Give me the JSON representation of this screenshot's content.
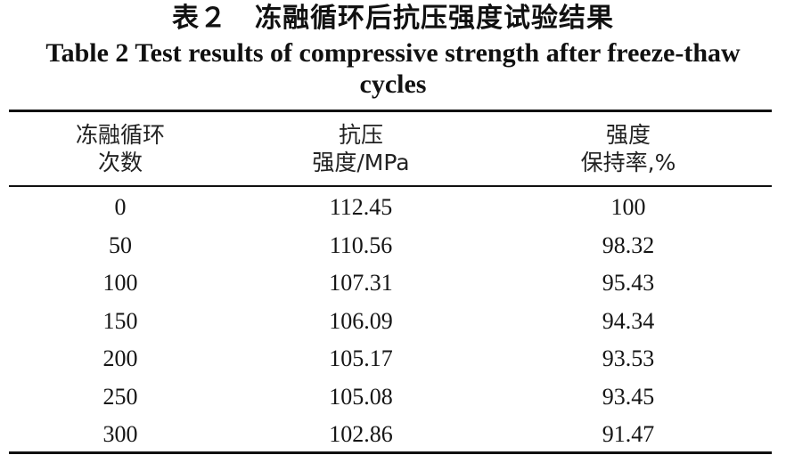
{
  "caption": {
    "cn": "表２　冻融循环后抗压强度试验结果",
    "en": "Table 2 Test results of compressive strength after freeze-thaw cycles"
  },
  "table": {
    "headers": [
      [
        "冻融循环",
        "次数"
      ],
      [
        "抗压",
        "强度/MPa"
      ],
      [
        "强度",
        "保持率,%"
      ]
    ],
    "rows": [
      [
        "0",
        "112.45",
        "100"
      ],
      [
        "50",
        "110.56",
        "98.32"
      ],
      [
        "100",
        "107.31",
        "95.43"
      ],
      [
        "150",
        "106.09",
        "94.34"
      ],
      [
        "200",
        "105.17",
        "93.53"
      ],
      [
        "250",
        "105.08",
        "93.45"
      ],
      [
        "300",
        "102.86",
        "91.47"
      ]
    ]
  }
}
